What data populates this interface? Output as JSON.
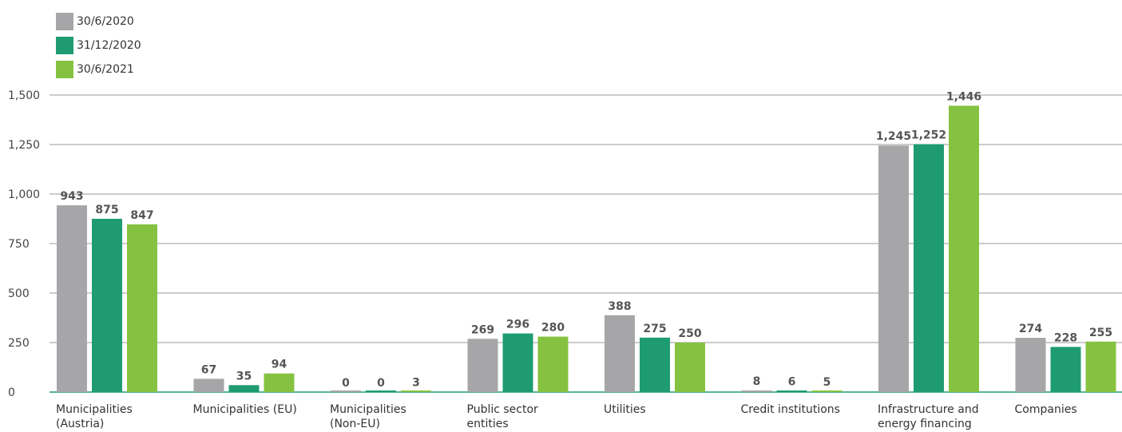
{
  "chart_data": {
    "type": "bar",
    "categories": [
      [
        "Municipalities",
        "(Austria)"
      ],
      [
        "Municipalities (EU)"
      ],
      [
        "Municipalities",
        "(Non-EU)"
      ],
      [
        "Public sector",
        "entities"
      ],
      [
        "Utilities"
      ],
      [
        "Credit institutions"
      ],
      [
        "Infrastructure and",
        "energy financing"
      ],
      [
        "Companies"
      ]
    ],
    "series": [
      {
        "name": "30/6/2020",
        "color": "#a6a6a8",
        "values": [
          943,
          67,
          0,
          269,
          388,
          8,
          1245,
          274
        ],
        "labels": [
          "943",
          "67",
          "0",
          "269",
          "388",
          "8",
          "1,245",
          "274"
        ]
      },
      {
        "name": "31/12/2020",
        "color": "#1f9b72",
        "values": [
          875,
          35,
          0,
          296,
          275,
          6,
          1252,
          228
        ],
        "labels": [
          "875",
          "35",
          "0",
          "296",
          "275",
          "6",
          "1,252",
          "228"
        ]
      },
      {
        "name": "30/6/2021",
        "color": "#86c241",
        "values": [
          847,
          94,
          3,
          280,
          250,
          5,
          1446,
          255
        ],
        "labels": [
          "847",
          "94",
          "3",
          "280",
          "250",
          "5",
          "1,446",
          "255"
        ]
      }
    ],
    "ylim": [
      0,
      1500
    ],
    "yticks": [
      0,
      250,
      500,
      750,
      1000,
      1250,
      1500
    ],
    "ytick_labels": [
      "0",
      "250",
      "500",
      "750",
      "1,000",
      "1,250",
      "1,500"
    ],
    "grid": true,
    "legend_position": "top-left",
    "gridline_color": "#9a9a9a",
    "baseline_color": "#1f9b72"
  }
}
